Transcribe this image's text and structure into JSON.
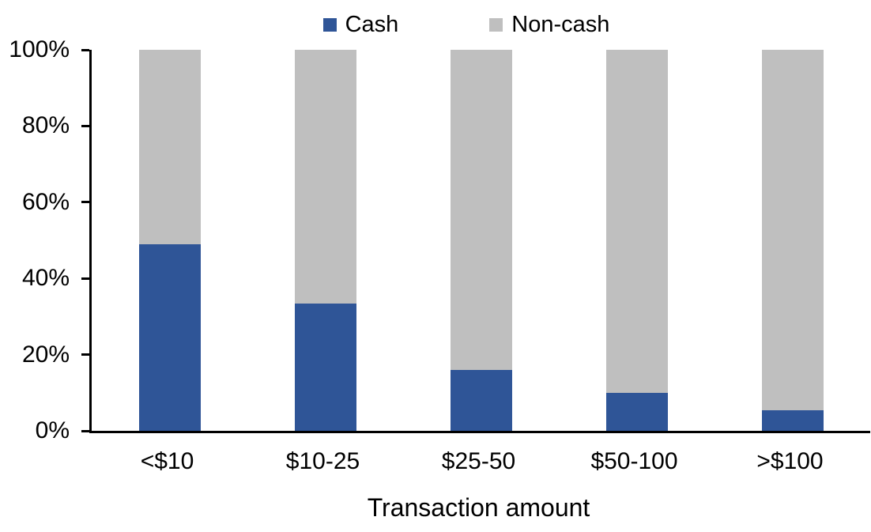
{
  "chart_data": {
    "type": "bar",
    "stacked": true,
    "stacked_100_percent": true,
    "title": "",
    "xlabel": "Transaction amount",
    "ylabel": "",
    "categories": [
      "<$10",
      "$10-25",
      "$25-50",
      "$50-100",
      ">$100"
    ],
    "series": [
      {
        "name": "Cash",
        "color": "#2F5597",
        "values": [
          49,
          33.5,
          16,
          10,
          5.5
        ]
      },
      {
        "name": "Non-cash",
        "color": "#BFBFBF",
        "values": [
          51,
          66.5,
          84,
          90,
          94.5
        ]
      }
    ],
    "ylim": [
      0,
      100
    ],
    "ytick_values": [
      0,
      20,
      40,
      60,
      80,
      100
    ],
    "ytick_labels": [
      "0%",
      "20%",
      "40%",
      "60%",
      "80%",
      "100%"
    ],
    "legend_position": "top",
    "grid": false,
    "axis_color": "#000000",
    "text_color": "#000000",
    "background_color": "#FFFFFF"
  }
}
